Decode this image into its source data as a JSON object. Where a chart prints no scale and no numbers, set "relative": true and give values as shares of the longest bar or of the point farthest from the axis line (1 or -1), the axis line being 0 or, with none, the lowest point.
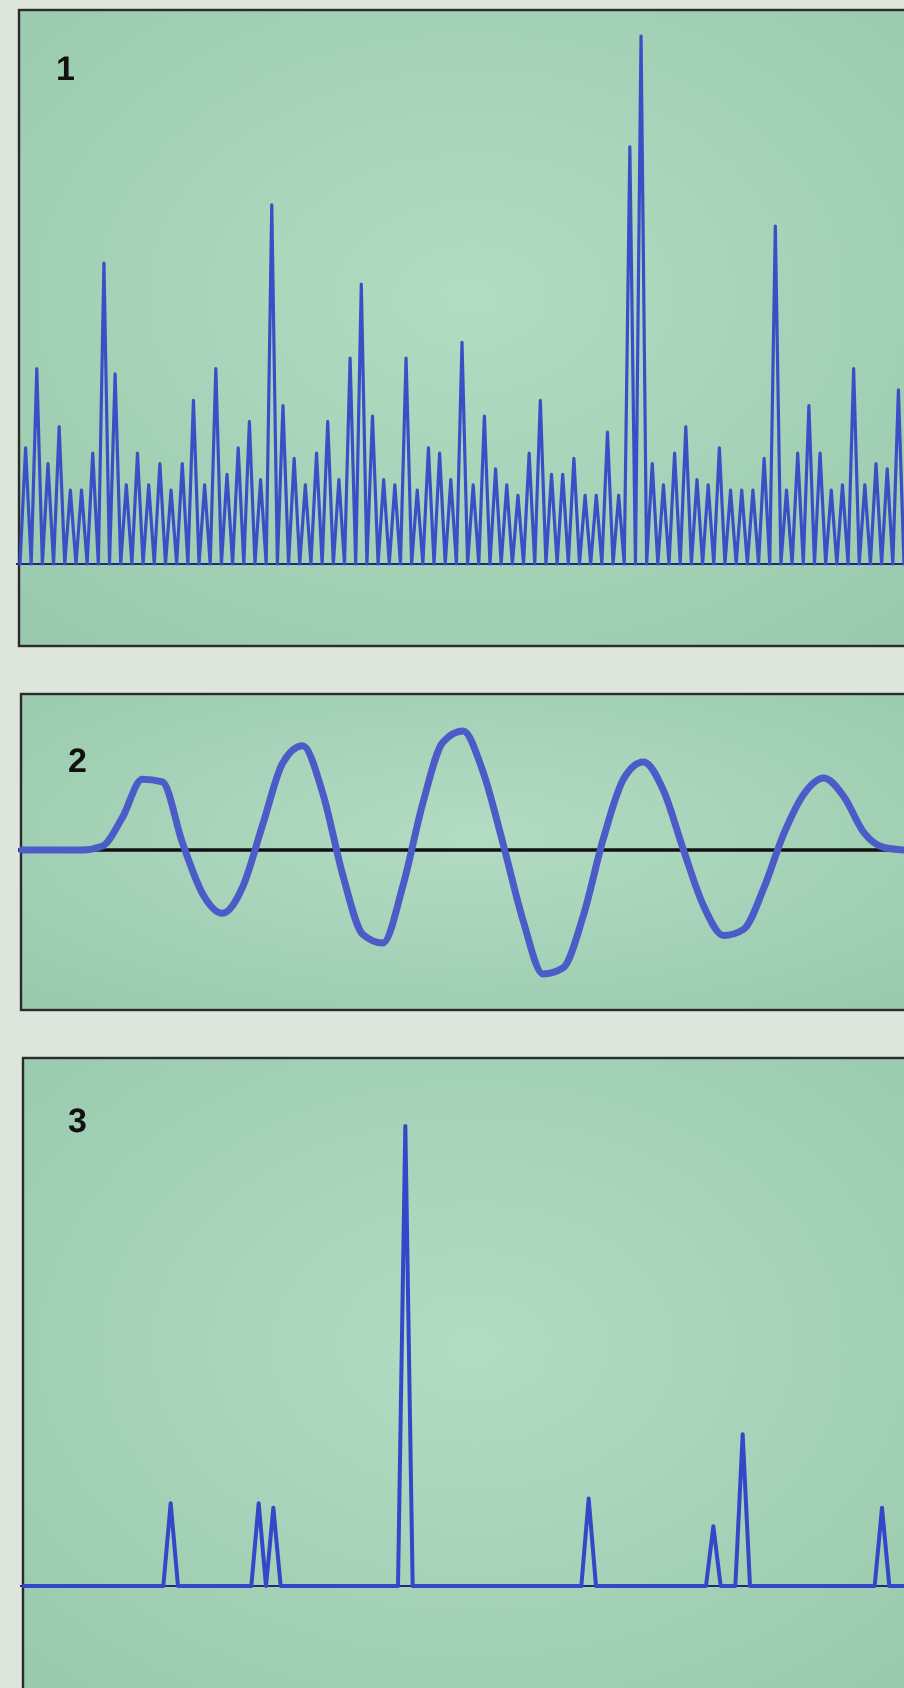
{
  "chart_data": [
    {
      "type": "line",
      "title": "1",
      "relative": true,
      "categories": [
        null,
        null,
        null,
        null,
        null,
        null,
        null,
        null,
        null,
        null,
        null,
        null,
        null,
        null,
        null,
        null,
        null,
        null,
        null,
        null,
        null,
        null,
        null,
        null,
        null,
        null,
        null,
        null,
        null,
        null,
        null,
        null,
        null,
        null,
        null,
        null,
        null,
        null,
        null,
        null,
        null,
        null,
        null,
        null,
        null,
        null,
        null,
        null,
        null,
        null,
        null,
        null,
        null,
        null,
        null,
        null,
        null,
        null,
        null,
        null,
        null,
        null,
        null,
        null,
        null,
        null,
        null,
        null,
        null,
        null,
        null,
        null,
        null,
        null,
        null,
        null,
        null,
        null,
        null,
        null,
        null,
        null,
        null,
        null,
        null,
        null,
        null,
        null,
        null,
        null,
        null,
        null,
        null,
        null,
        null,
        null,
        null,
        null,
        null,
        null,
        null,
        null,
        null,
        null,
        null,
        null,
        null,
        null,
        null,
        null,
        null,
        null,
        null,
        null,
        null,
        null,
        null,
        null,
        null,
        null,
        null,
        null,
        null,
        null,
        null,
        null,
        null,
        null,
        null,
        null,
        null,
        null,
        null,
        null,
        null,
        null,
        null,
        null,
        null,
        null,
        null,
        null,
        null,
        null,
        null,
        null,
        null,
        null,
        null,
        null,
        null,
        null,
        null,
        null,
        null,
        null,
        null,
        null,
        null
      ],
      "series": [
        {
          "color": "#3a4fc6",
          "values": [
            0,
            0.22,
            0,
            0.37,
            0,
            0.19,
            0,
            0.26,
            0,
            0.14,
            0,
            0.14,
            0,
            0.21,
            0,
            0.57,
            0,
            0.36,
            0,
            0.15,
            0,
            0.21,
            0,
            0.15,
            0,
            0.19,
            0,
            0.14,
            0,
            0.19,
            0,
            0.31,
            0,
            0.15,
            0,
            0.37,
            0,
            0.17,
            0,
            0.22,
            0,
            0.27,
            0,
            0.16,
            0,
            0.68,
            0,
            0.3,
            0,
            0.2,
            0,
            0.15,
            0,
            0.21,
            0,
            0.27,
            0,
            0.16,
            0,
            0.39,
            0,
            0.53,
            0,
            0.28,
            0,
            0.16,
            0,
            0.15,
            0,
            0.39,
            0,
            0.14,
            0,
            0.22,
            0,
            0.21,
            0,
            0.16,
            0,
            0.42,
            0,
            0.15,
            0,
            0.28,
            0,
            0.18,
            0,
            0.15,
            0,
            0.13,
            0,
            0.21,
            0,
            0.31,
            0,
            0.17,
            0,
            0.17,
            0,
            0.2,
            0,
            0.13,
            0,
            0.13,
            0,
            0.25,
            0,
            0.13,
            0,
            0.79,
            0,
            1,
            0,
            0.19,
            0,
            0.15,
            0,
            0.21,
            0,
            0.26,
            0,
            0.16,
            0,
            0.15,
            0,
            0.22,
            0,
            0.14,
            0,
            0.14,
            0,
            0.14,
            0,
            0.2,
            0,
            0.64,
            0,
            0.14,
            0,
            0.21,
            0,
            0.3,
            0,
            0.21,
            0,
            0.14,
            0,
            0.15,
            0,
            0.37,
            0,
            0.15,
            0,
            0.19,
            0,
            0.18,
            0,
            0.33,
            0
          ]
        }
      ]
    },
    {
      "type": "line",
      "title": "2",
      "relative": true,
      "categories": [
        null,
        null,
        null,
        null,
        null,
        null,
        null,
        null,
        null,
        null,
        null,
        null,
        null,
        null,
        null,
        null,
        null,
        null,
        null,
        null,
        null,
        null,
        null,
        null,
        null,
        null,
        null,
        null,
        null,
        null,
        null,
        null,
        null,
        null,
        null,
        null,
        null,
        null,
        null,
        null,
        null,
        null,
        null,
        null,
        null
      ],
      "series": [
        {
          "color": "#4b5cc9",
          "values": [
            0,
            0,
            0,
            0,
            0.03,
            0.26,
            0.57,
            0.55,
            0.06,
            -0.35,
            -0.51,
            -0.3,
            0.2,
            0.7,
            0.84,
            0.46,
            -0.2,
            -0.68,
            -0.75,
            -0.29,
            0.38,
            0.87,
            0.96,
            0.63,
            0.05,
            -0.57,
            -1,
            -0.95,
            -0.53,
            0.09,
            0.57,
            0.71,
            0.48,
            0,
            -0.45,
            -0.69,
            -0.64,
            -0.31,
            0.13,
            0.45,
            0.58,
            0.43,
            0.14,
            0.02,
            0
          ]
        }
      ]
    },
    {
      "type": "line",
      "title": "3",
      "relative": true,
      "categories": [
        null,
        null,
        null,
        null,
        null,
        null,
        null,
        null,
        null,
        null,
        null,
        null,
        null,
        null,
        null,
        null,
        null,
        null,
        null,
        null,
        null,
        null,
        null,
        null,
        null,
        null,
        null,
        null,
        null,
        null,
        null,
        null,
        null,
        null,
        null,
        null,
        null,
        null,
        null,
        null,
        null,
        null,
        null,
        null,
        null,
        null,
        null,
        null,
        null,
        null,
        null,
        null,
        null,
        null,
        null,
        null,
        null,
        null,
        null,
        null,
        null,
        null,
        null,
        null,
        null,
        null,
        null,
        null,
        null,
        null,
        null,
        null,
        null,
        null,
        null,
        null,
        null,
        null,
        null,
        null,
        null,
        null,
        null,
        null,
        null,
        null,
        null,
        null,
        null,
        null,
        null,
        null,
        null,
        null,
        null,
        null,
        null,
        null,
        null,
        null,
        null,
        null,
        null,
        null,
        null,
        null,
        null,
        null,
        null,
        null,
        null,
        null,
        null,
        null,
        null,
        null,
        null,
        null,
        null,
        null,
        null
      ],
      "series": [
        {
          "color": "#3447c8",
          "values": [
            0,
            0,
            0,
            0,
            0,
            0,
            0,
            0,
            0,
            0,
            0,
            0,
            0,
            0,
            0,
            0,
            0,
            0,
            0,
            0,
            0.18,
            0,
            0,
            0,
            0,
            0,
            0,
            0,
            0,
            0,
            0,
            0,
            0.18,
            0,
            0.17,
            0,
            0,
            0,
            0,
            0,
            0,
            0,
            0,
            0,
            0,
            0,
            0,
            0,
            0,
            0,
            0,
            0,
            1,
            0,
            0,
            0,
            0,
            0,
            0,
            0,
            0,
            0,
            0,
            0,
            0,
            0,
            0,
            0,
            0,
            0,
            0,
            0,
            0,
            0,
            0,
            0,
            0,
            0.19,
            0,
            0,
            0,
            0,
            0,
            0,
            0,
            0,
            0,
            0,
            0,
            0,
            0,
            0,
            0,
            0,
            0.13,
            0,
            0,
            0,
            0.33,
            0,
            0,
            0,
            0,
            0,
            0,
            0,
            0,
            0,
            0,
            0,
            0,
            0,
            0,
            0,
            0,
            0,
            0,
            0.17,
            0,
            0,
            0
          ]
        }
      ]
    }
  ]
}
